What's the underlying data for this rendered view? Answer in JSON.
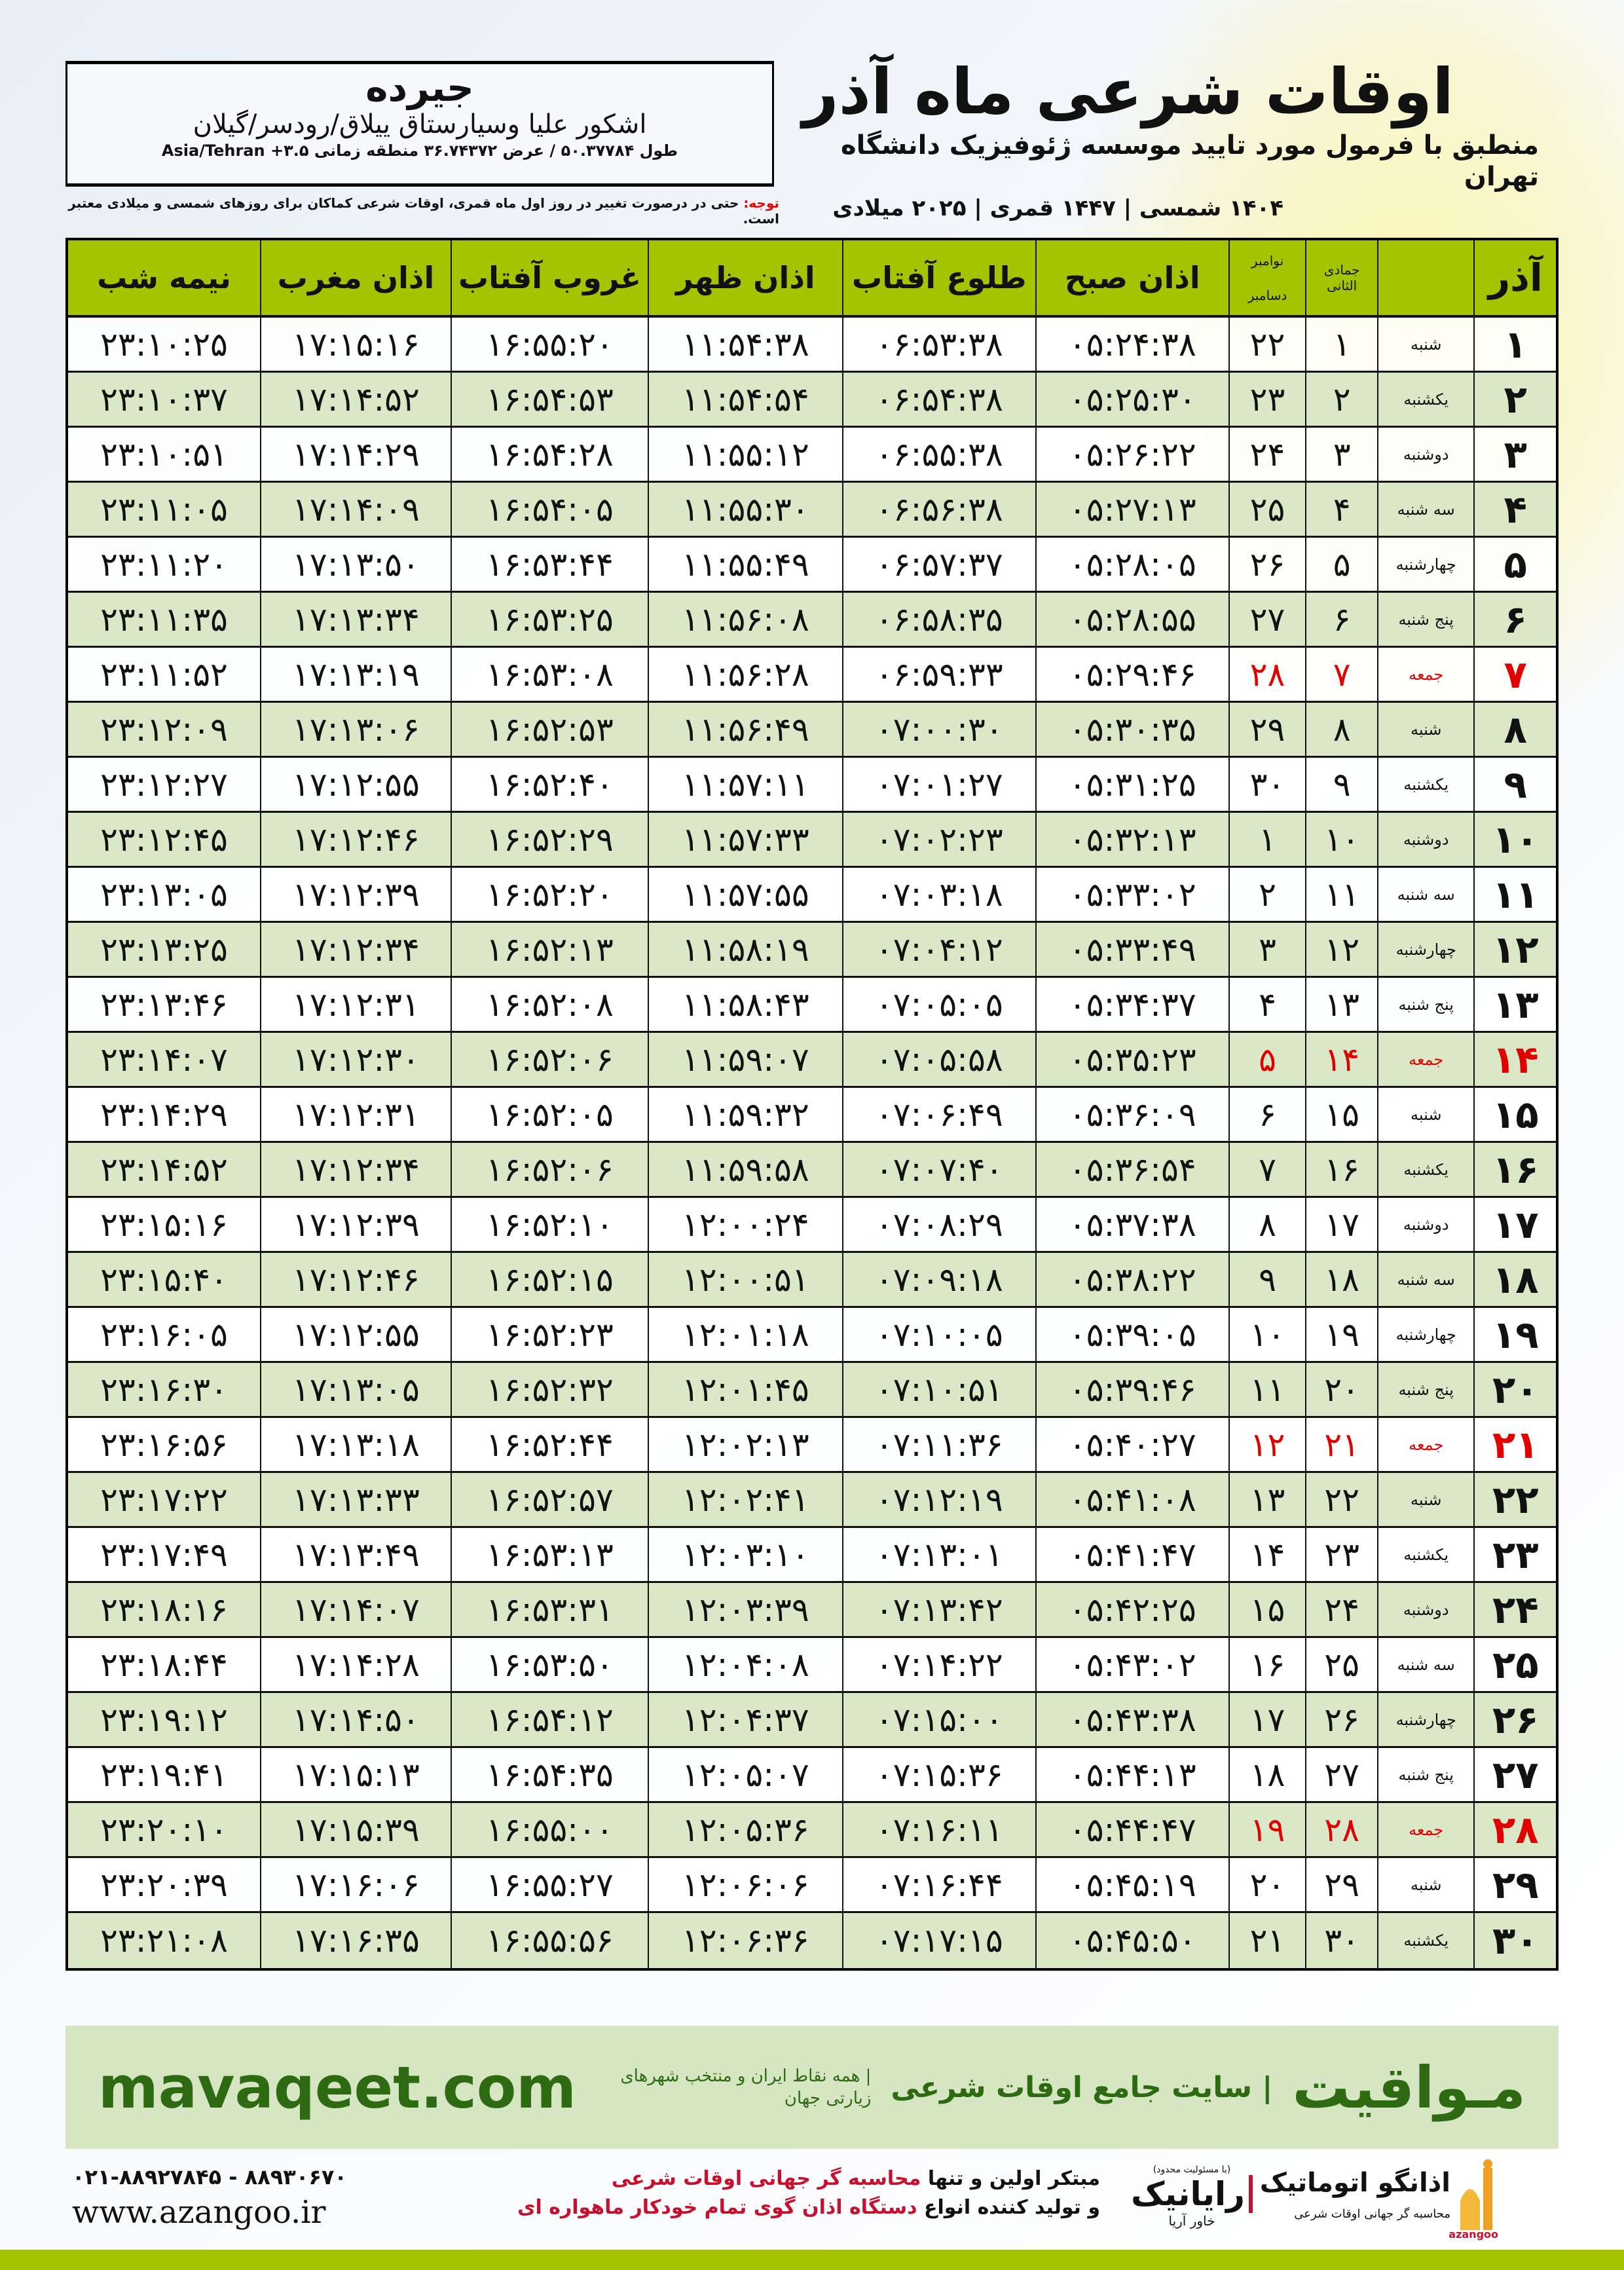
{
  "location": {
    "name": "جیرده",
    "region": "اشکور علیا وسیارستاق ییلاق/رودسر/گیلان",
    "coords": "طول ۵۰.۳۷۷۸۴ / عرض ۳۶.۷۴۳۷۲ منطقه زمانی ۳.۵+ Asia/Tehran"
  },
  "header": {
    "title": "اوقات شرعی ماه آذر",
    "subtitle": "منطبق با فرمول مورد تایید موسسه ژئوفیزیک دانشگاه تهران",
    "dates": "۱۴۰۴ شمسی | ۱۴۴۷ قمری | ۲۰۲۵ میلادی"
  },
  "note": {
    "label": "توجه:",
    "text": " حتی در درصورت تغییر در روز اول ماه قمری، اوقات شرعی کماکان برای روزهای شمسی و میلادی معتبر است."
  },
  "table": {
    "columns": {
      "month": "آذر",
      "hijri": "جمادی الثانی",
      "gregorian_top": "نوامبر",
      "gregorian_bottom": "دسامبر",
      "fajr": "اذان صبح",
      "sunrise": "طلوع آفتاب",
      "dhuhr": "اذان ظهر",
      "sunset": "غروب آفتاب",
      "maghrib": "اذان مغرب",
      "midnight": "نیمه شب"
    },
    "friday_color": "#e00000",
    "rows": [
      [
        "۱",
        "شنبه",
        "۱",
        "۲۲",
        "۰۵:۲۴:۳۸",
        "۰۶:۵۳:۳۸",
        "۱۱:۵۴:۳۸",
        "۱۶:۵۵:۲۰",
        "۱۷:۱۵:۱۶",
        "۲۳:۱۰:۲۵"
      ],
      [
        "۲",
        "یکشنبه",
        "۲",
        "۲۳",
        "۰۵:۲۵:۳۰",
        "۰۶:۵۴:۳۸",
        "۱۱:۵۴:۵۴",
        "۱۶:۵۴:۵۳",
        "۱۷:۱۴:۵۲",
        "۲۳:۱۰:۳۷"
      ],
      [
        "۳",
        "دوشنبه",
        "۳",
        "۲۴",
        "۰۵:۲۶:۲۲",
        "۰۶:۵۵:۳۸",
        "۱۱:۵۵:۱۲",
        "۱۶:۵۴:۲۸",
        "۱۷:۱۴:۲۹",
        "۲۳:۱۰:۵۱"
      ],
      [
        "۴",
        "سه شنبه",
        "۴",
        "۲۵",
        "۰۵:۲۷:۱۳",
        "۰۶:۵۶:۳۸",
        "۱۱:۵۵:۳۰",
        "۱۶:۵۴:۰۵",
        "۱۷:۱۴:۰۹",
        "۲۳:۱۱:۰۵"
      ],
      [
        "۵",
        "چهارشنبه",
        "۵",
        "۲۶",
        "۰۵:۲۸:۰۵",
        "۰۶:۵۷:۳۷",
        "۱۱:۵۵:۴۹",
        "۱۶:۵۳:۴۴",
        "۱۷:۱۳:۵۰",
        "۲۳:۱۱:۲۰"
      ],
      [
        "۶",
        "پنج شنبه",
        "۶",
        "۲۷",
        "۰۵:۲۸:۵۵",
        "۰۶:۵۸:۳۵",
        "۱۱:۵۶:۰۸",
        "۱۶:۵۳:۲۵",
        "۱۷:۱۳:۳۴",
        "۲۳:۱۱:۳۵"
      ],
      [
        "۷",
        "جمعه",
        "۷",
        "۲۸",
        "۰۵:۲۹:۴۶",
        "۰۶:۵۹:۳۳",
        "۱۱:۵۶:۲۸",
        "۱۶:۵۳:۰۸",
        "۱۷:۱۳:۱۹",
        "۲۳:۱۱:۵۲"
      ],
      [
        "۸",
        "شنبه",
        "۸",
        "۲۹",
        "۰۵:۳۰:۳۵",
        "۰۷:۰۰:۳۰",
        "۱۱:۵۶:۴۹",
        "۱۶:۵۲:۵۳",
        "۱۷:۱۳:۰۶",
        "۲۳:۱۲:۰۹"
      ],
      [
        "۹",
        "یکشنبه",
        "۹",
        "۳۰",
        "۰۵:۳۱:۲۵",
        "۰۷:۰۱:۲۷",
        "۱۱:۵۷:۱۱",
        "۱۶:۵۲:۴۰",
        "۱۷:۱۲:۵۵",
        "۲۳:۱۲:۲۷"
      ],
      [
        "۱۰",
        "دوشنبه",
        "۱۰",
        "۱",
        "۰۵:۳۲:۱۳",
        "۰۷:۰۲:۲۳",
        "۱۱:۵۷:۳۳",
        "۱۶:۵۲:۲۹",
        "۱۷:۱۲:۴۶",
        "۲۳:۱۲:۴۵"
      ],
      [
        "۱۱",
        "سه شنبه",
        "۱۱",
        "۲",
        "۰۵:۳۳:۰۲",
        "۰۷:۰۳:۱۸",
        "۱۱:۵۷:۵۵",
        "۱۶:۵۲:۲۰",
        "۱۷:۱۲:۳۹",
        "۲۳:۱۳:۰۵"
      ],
      [
        "۱۲",
        "چهارشنبه",
        "۱۲",
        "۳",
        "۰۵:۳۳:۴۹",
        "۰۷:۰۴:۱۲",
        "۱۱:۵۸:۱۹",
        "۱۶:۵۲:۱۳",
        "۱۷:۱۲:۳۴",
        "۲۳:۱۳:۲۵"
      ],
      [
        "۱۳",
        "پنج شنبه",
        "۱۳",
        "۴",
        "۰۵:۳۴:۳۷",
        "۰۷:۰۵:۰۵",
        "۱۱:۵۸:۴۳",
        "۱۶:۵۲:۰۸",
        "۱۷:۱۲:۳۱",
        "۲۳:۱۳:۴۶"
      ],
      [
        "۱۴",
        "جمعه",
        "۱۴",
        "۵",
        "۰۵:۳۵:۲۳",
        "۰۷:۰۵:۵۸",
        "۱۱:۵۹:۰۷",
        "۱۶:۵۲:۰۶",
        "۱۷:۱۲:۳۰",
        "۲۳:۱۴:۰۷"
      ],
      [
        "۱۵",
        "شنبه",
        "۱۵",
        "۶",
        "۰۵:۳۶:۰۹",
        "۰۷:۰۶:۴۹",
        "۱۱:۵۹:۳۲",
        "۱۶:۵۲:۰۵",
        "۱۷:۱۲:۳۱",
        "۲۳:۱۴:۲۹"
      ],
      [
        "۱۶",
        "یکشنبه",
        "۱۶",
        "۷",
        "۰۵:۳۶:۵۴",
        "۰۷:۰۷:۴۰",
        "۱۱:۵۹:۵۸",
        "۱۶:۵۲:۰۶",
        "۱۷:۱۲:۳۴",
        "۲۳:۱۴:۵۲"
      ],
      [
        "۱۷",
        "دوشنبه",
        "۱۷",
        "۸",
        "۰۵:۳۷:۳۸",
        "۰۷:۰۸:۲۹",
        "۱۲:۰۰:۲۴",
        "۱۶:۵۲:۱۰",
        "۱۷:۱۲:۳۹",
        "۲۳:۱۵:۱۶"
      ],
      [
        "۱۸",
        "سه شنبه",
        "۱۸",
        "۹",
        "۰۵:۳۸:۲۲",
        "۰۷:۰۹:۱۸",
        "۱۲:۰۰:۵۱",
        "۱۶:۵۲:۱۵",
        "۱۷:۱۲:۴۶",
        "۲۳:۱۵:۴۰"
      ],
      [
        "۱۹",
        "چهارشنبه",
        "۱۹",
        "۱۰",
        "۰۵:۳۹:۰۵",
        "۰۷:۱۰:۰۵",
        "۱۲:۰۱:۱۸",
        "۱۶:۵۲:۲۳",
        "۱۷:۱۲:۵۵",
        "۲۳:۱۶:۰۵"
      ],
      [
        "۲۰",
        "پنج شنبه",
        "۲۰",
        "۱۱",
        "۰۵:۳۹:۴۶",
        "۰۷:۱۰:۵۱",
        "۱۲:۰۱:۴۵",
        "۱۶:۵۲:۳۲",
        "۱۷:۱۳:۰۵",
        "۲۳:۱۶:۳۰"
      ],
      [
        "۲۱",
        "جمعه",
        "۲۱",
        "۱۲",
        "۰۵:۴۰:۲۷",
        "۰۷:۱۱:۳۶",
        "۱۲:۰۲:۱۳",
        "۱۶:۵۲:۴۴",
        "۱۷:۱۳:۱۸",
        "۲۳:۱۶:۵۶"
      ],
      [
        "۲۲",
        "شنبه",
        "۲۲",
        "۱۳",
        "۰۵:۴۱:۰۸",
        "۰۷:۱۲:۱۹",
        "۱۲:۰۲:۴۱",
        "۱۶:۵۲:۵۷",
        "۱۷:۱۳:۳۳",
        "۲۳:۱۷:۲۲"
      ],
      [
        "۲۳",
        "یکشنبه",
        "۲۳",
        "۱۴",
        "۰۵:۴۱:۴۷",
        "۰۷:۱۳:۰۱",
        "۱۲:۰۳:۱۰",
        "۱۶:۵۳:۱۳",
        "۱۷:۱۳:۴۹",
        "۲۳:۱۷:۴۹"
      ],
      [
        "۲۴",
        "دوشنبه",
        "۲۴",
        "۱۵",
        "۰۵:۴۲:۲۵",
        "۰۷:۱۳:۴۲",
        "۱۲:۰۳:۳۹",
        "۱۶:۵۳:۳۱",
        "۱۷:۱۴:۰۷",
        "۲۳:۱۸:۱۶"
      ],
      [
        "۲۵",
        "سه شنبه",
        "۲۵",
        "۱۶",
        "۰۵:۴۳:۰۲",
        "۰۷:۱۴:۲۲",
        "۱۲:۰۴:۰۸",
        "۱۶:۵۳:۵۰",
        "۱۷:۱۴:۲۸",
        "۲۳:۱۸:۴۴"
      ],
      [
        "۲۶",
        "چهارشنبه",
        "۲۶",
        "۱۷",
        "۰۵:۴۳:۳۸",
        "۰۷:۱۵:۰۰",
        "۱۲:۰۴:۳۷",
        "۱۶:۵۴:۱۲",
        "۱۷:۱۴:۵۰",
        "۲۳:۱۹:۱۲"
      ],
      [
        "۲۷",
        "پنج شنبه",
        "۲۷",
        "۱۸",
        "۰۵:۴۴:۱۳",
        "۰۷:۱۵:۳۶",
        "۱۲:۰۵:۰۷",
        "۱۶:۵۴:۳۵",
        "۱۷:۱۵:۱۳",
        "۲۳:۱۹:۴۱"
      ],
      [
        "۲۸",
        "جمعه",
        "۲۸",
        "۱۹",
        "۰۵:۴۴:۴۷",
        "۰۷:۱۶:۱۱",
        "۱۲:۰۵:۳۶",
        "۱۶:۵۵:۰۰",
        "۱۷:۱۵:۳۹",
        "۲۳:۲۰:۱۰"
      ],
      [
        "۲۹",
        "شنبه",
        "۲۹",
        "۲۰",
        "۰۵:۴۵:۱۹",
        "۰۷:۱۶:۴۴",
        "۱۲:۰۶:۰۶",
        "۱۶:۵۵:۲۷",
        "۱۷:۱۶:۰۶",
        "۲۳:۲۰:۳۹"
      ],
      [
        "۳۰",
        "یکشنبه",
        "۳۰",
        "۲۱",
        "۰۵:۴۵:۵۰",
        "۰۷:۱۷:۱۵",
        "۱۲:۰۶:۳۶",
        "۱۶:۵۵:۵۶",
        "۱۷:۱۶:۳۵",
        "۲۳:۲۱:۰۸"
      ]
    ]
  },
  "footer": {
    "brand": "مـواقیت",
    "slogan": "| سایت جامع اوقات شرعی",
    "sub": "| همه نقاط ایران و منتخب شهرهای زیارتی جهان",
    "url": "mavaqeet.com",
    "phone": "۰۲۱-۸۸۹۲۷۸۴۵ - ۸۸۹۳۰۶۷۰",
    "site": "www.azangoo.ir",
    "promo1_a": "مبتکر اولین و تنها ",
    "promo1_b": "محاسبه گر جهانی اوقات شرعی",
    "promo2_a": "و تولید کننده انواع ",
    "promo2_b": "دستگاه اذان گوی تمام خودکار ماهواره ای",
    "rayanik": "رایانیک",
    "rayanik_sub": "خاور آریا",
    "rayanik_note": "(با مسئولیت محدود)",
    "azangoo": "اذانگو اتوماتیک",
    "azangoo_sub": "محاسبه گر جهانی اوقات شرعی",
    "azangoo_en": "azangoo",
    "brand_color": "#2d6a12",
    "accent_green": "#a5c400"
  }
}
